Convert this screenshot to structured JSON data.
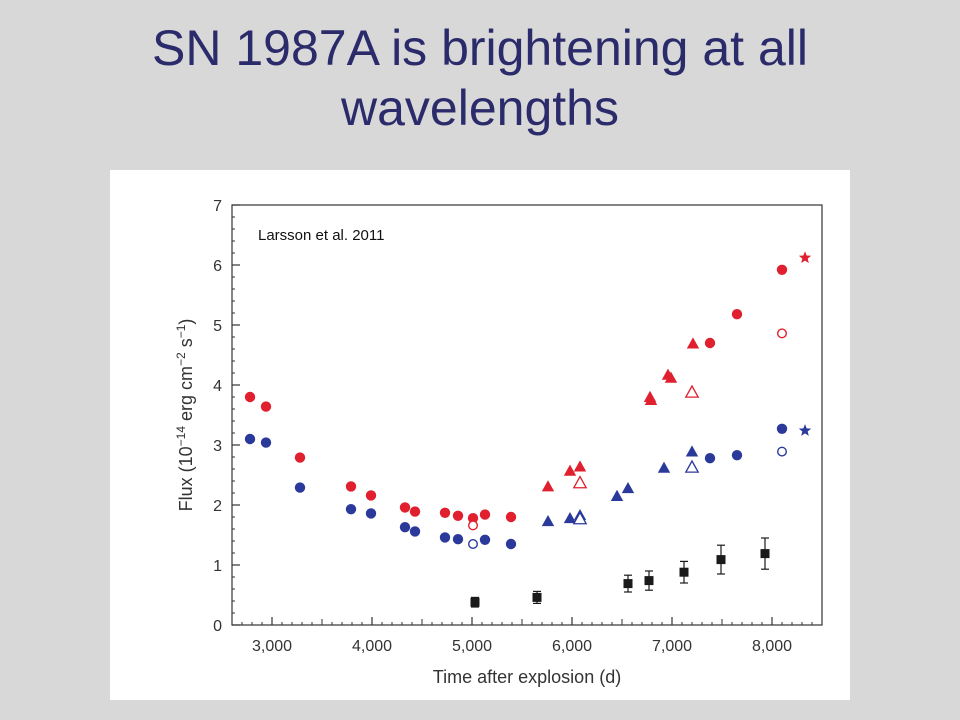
{
  "slide": {
    "title_line1": "SN 1987A is brightening at all",
    "title_line2": "wavelengths"
  },
  "colors": {
    "red": "#e0202e",
    "blue": "#2b3a9a",
    "black": "#1a1a1a",
    "title": "#2b2b6b",
    "background": "#d8d8d8"
  },
  "chart_data": {
    "type": "scatter",
    "annotation": "Larsson et al. 2011",
    "xlabel": "Time after explosion (d)",
    "ylabel_parts": [
      "Flux (10",
      "−14",
      " erg cm",
      "−2",
      " s",
      "−1",
      ")"
    ],
    "xlim": [
      2600,
      8500
    ],
    "ylim": [
      0,
      7
    ],
    "xticks": [
      3000,
      4000,
      5000,
      6000,
      7000,
      8000
    ],
    "xtick_labels": [
      "3,000",
      "4,000",
      "5,000",
      "6,000",
      "7,000",
      "8,000"
    ],
    "yticks": [
      0,
      1,
      2,
      3,
      4,
      5,
      6,
      7
    ],
    "ytick_labels": [
      "0",
      "1",
      "2",
      "3",
      "4",
      "5",
      "6",
      "7"
    ],
    "grid": false,
    "series": [
      {
        "color": "red",
        "marker": "circle",
        "fill": "filled",
        "points": [
          [
            2780,
            3.8
          ],
          [
            2940,
            3.64
          ],
          [
            3280,
            2.79
          ],
          [
            3790,
            2.31
          ],
          [
            3990,
            2.16
          ],
          [
            4330,
            1.96
          ],
          [
            4430,
            1.89
          ],
          [
            4730,
            1.87
          ],
          [
            4860,
            1.82
          ],
          [
            5010,
            1.78
          ],
          [
            5130,
            1.84
          ],
          [
            5390,
            1.8
          ],
          [
            7380,
            4.7
          ],
          [
            7650,
            5.18
          ],
          [
            8100,
            5.92
          ]
        ]
      },
      {
        "color": "red",
        "marker": "circle",
        "fill": "open",
        "points": [
          [
            5010,
            1.66
          ],
          [
            8100,
            4.86
          ]
        ]
      },
      {
        "color": "red",
        "marker": "triangle",
        "fill": "filled",
        "points": [
          [
            5760,
            2.31
          ],
          [
            5980,
            2.57
          ],
          [
            6080,
            2.64
          ],
          [
            6780,
            3.8
          ],
          [
            6790,
            3.75
          ],
          [
            6960,
            4.17
          ],
          [
            6990,
            4.12
          ],
          [
            7210,
            4.69
          ]
        ]
      },
      {
        "color": "red",
        "marker": "triangle",
        "fill": "open",
        "points": [
          [
            6080,
            2.37
          ],
          [
            7200,
            3.88
          ]
        ]
      },
      {
        "color": "red",
        "marker": "star",
        "fill": "filled",
        "points": [
          [
            8330,
            6.12
          ]
        ]
      },
      {
        "color": "blue",
        "marker": "circle",
        "fill": "filled",
        "points": [
          [
            2780,
            3.1
          ],
          [
            2940,
            3.04
          ],
          [
            3280,
            2.29
          ],
          [
            3790,
            1.93
          ],
          [
            3990,
            1.86
          ],
          [
            4330,
            1.63
          ],
          [
            4430,
            1.56
          ],
          [
            4730,
            1.46
          ],
          [
            4860,
            1.43
          ],
          [
            5130,
            1.42
          ],
          [
            5390,
            1.35
          ],
          [
            7380,
            2.78
          ],
          [
            7650,
            2.83
          ],
          [
            8100,
            3.27
          ]
        ]
      },
      {
        "color": "blue",
        "marker": "circle",
        "fill": "open",
        "points": [
          [
            5010,
            1.35
          ],
          [
            8100,
            2.89
          ]
        ]
      },
      {
        "color": "blue",
        "marker": "triangle",
        "fill": "filled",
        "points": [
          [
            5760,
            1.73
          ],
          [
            5980,
            1.78
          ],
          [
            6080,
            1.83
          ],
          [
            6450,
            2.15
          ],
          [
            6560,
            2.28
          ],
          [
            6920,
            2.62
          ],
          [
            7200,
            2.89
          ]
        ]
      },
      {
        "color": "blue",
        "marker": "triangle",
        "fill": "open",
        "points": [
          [
            6080,
            1.77
          ],
          [
            7200,
            2.63
          ]
        ]
      },
      {
        "color": "blue",
        "marker": "star",
        "fill": "filled",
        "points": [
          [
            8330,
            3.24
          ]
        ]
      },
      {
        "color": "black",
        "marker": "square",
        "fill": "filled",
        "points": [
          [
            5030,
            0.38,
            0.08
          ],
          [
            5650,
            0.46,
            0.1
          ],
          [
            6560,
            0.69,
            0.14
          ],
          [
            6770,
            0.74,
            0.16
          ],
          [
            7120,
            0.88,
            0.18
          ],
          [
            7490,
            1.09,
            0.24
          ],
          [
            7930,
            1.19,
            0.26
          ]
        ]
      }
    ]
  }
}
